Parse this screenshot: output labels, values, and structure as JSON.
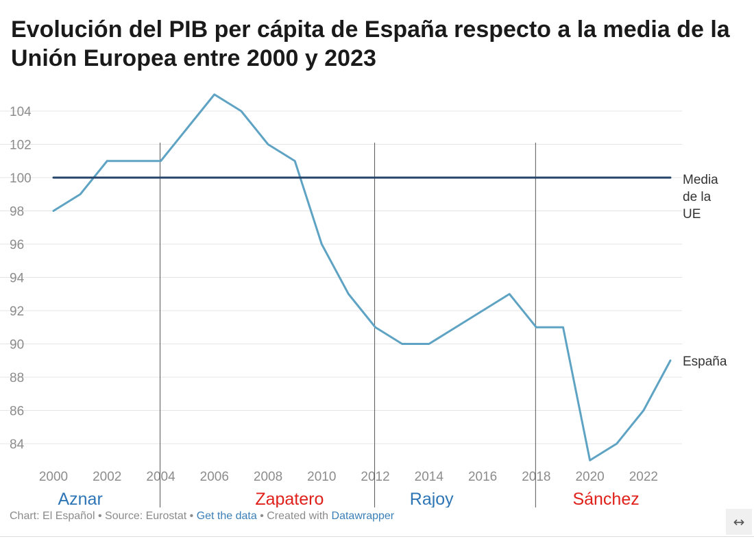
{
  "chart_data": {
    "type": "line",
    "title": "Evolución del PIB per cápita de España respecto a la media de la Unión Europea entre 2000 y 2023",
    "x": [
      2000,
      2001,
      2002,
      2003,
      2004,
      2005,
      2006,
      2007,
      2008,
      2009,
      2010,
      2011,
      2012,
      2013,
      2014,
      2015,
      2016,
      2017,
      2018,
      2019,
      2020,
      2021,
      2022,
      2023
    ],
    "series": [
      {
        "name": "España",
        "color": "#5ea3c3",
        "values": [
          98,
          99,
          101,
          101,
          101,
          103,
          105,
          104,
          102,
          101,
          96,
          93,
          91,
          90,
          90,
          91,
          92,
          93,
          91,
          91,
          83,
          84,
          86,
          89
        ]
      },
      {
        "name": "Media de la UE",
        "label_lines": [
          "Media",
          "de la",
          "UE"
        ],
        "color": "#24446a",
        "values": [
          100,
          100,
          100,
          100,
          100,
          100,
          100,
          100,
          100,
          100,
          100,
          100,
          100,
          100,
          100,
          100,
          100,
          100,
          100,
          100,
          100,
          100,
          100,
          100
        ]
      }
    ],
    "x_ticks": [
      "2000",
      "2002",
      "2004",
      "2006",
      "2008",
      "2010",
      "2012",
      "2014",
      "2016",
      "2018",
      "2020",
      "2022"
    ],
    "x_tick_values": [
      2000,
      2002,
      2004,
      2006,
      2008,
      2010,
      2012,
      2014,
      2016,
      2018,
      2020,
      2022
    ],
    "y_ticks": [
      "104",
      "102",
      "100",
      "98",
      "96",
      "94",
      "92",
      "90",
      "88",
      "86",
      "84"
    ],
    "y_tick_values": [
      104,
      102,
      100,
      98,
      96,
      94,
      92,
      90,
      88,
      86,
      84
    ],
    "xlim": [
      2000,
      2023
    ],
    "ylim": [
      83,
      105
    ],
    "grid": true,
    "xlabel": "",
    "ylabel": "",
    "legend": "inline labels at line ends (right)",
    "periods": [
      {
        "name": "Aznar",
        "start": 2000,
        "end": 2004,
        "color": "#2e75b6"
      },
      {
        "name": "Zapatero",
        "start": 2004,
        "end": 2012,
        "color": "#e0201b"
      },
      {
        "name": "Rajoy",
        "start": 2012,
        "end": 2018,
        "color": "#2e75b6"
      },
      {
        "name": "Sánchez",
        "start": 2018,
        "end": 2023,
        "color": "#e0201b"
      }
    ],
    "period_boundaries": [
      2004,
      2012,
      2018
    ]
  },
  "footer": {
    "chart_credit": "Chart: El Español",
    "sep": " • ",
    "source": "Source: Eurostat",
    "get_data": "Get the data",
    "created_with": "Created with ",
    "datawrapper": "Datawrapper"
  },
  "expand_icon": "↔",
  "colors": {
    "grid": "#e4e4e4",
    "tick_text": "#8c8c8c",
    "label_text": "#333333",
    "divider": "#555555"
  }
}
